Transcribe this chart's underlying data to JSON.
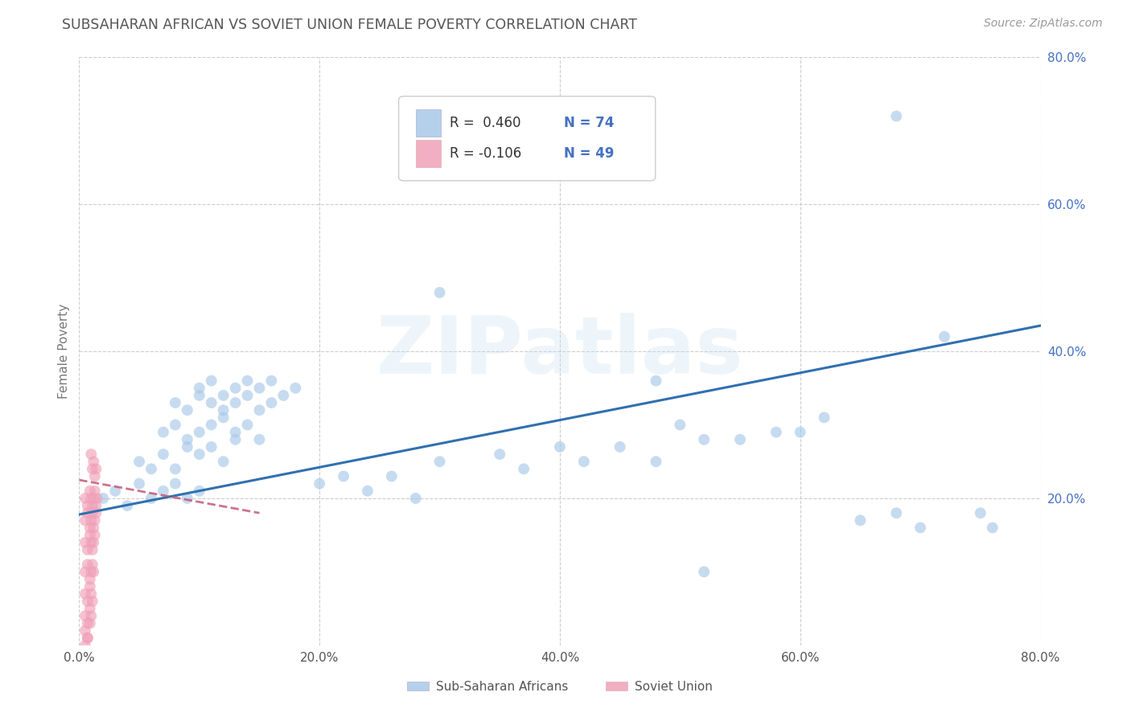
{
  "title": "SUBSAHARAN AFRICAN VS SOVIET UNION FEMALE POVERTY CORRELATION CHART",
  "source": "Source: ZipAtlas.com",
  "ylabel": "Female Poverty",
  "xlim": [
    0.0,
    0.8
  ],
  "ylim": [
    0.0,
    0.8
  ],
  "xtick_labels": [
    "0.0%",
    "20.0%",
    "40.0%",
    "60.0%",
    "80.0%"
  ],
  "xtick_values": [
    0.0,
    0.2,
    0.4,
    0.6,
    0.8
  ],
  "ytick_labels": [
    "80.0%",
    "60.0%",
    "40.0%",
    "20.0%"
  ],
  "ytick_values": [
    0.8,
    0.6,
    0.4,
    0.2
  ],
  "grid_color": "#c8c8c8",
  "background_color": "#ffffff",
  "watermark_text": "ZIPatlas",
  "color_blue": "#a8c8e8",
  "color_pink": "#f0a0b8",
  "line_color_blue": "#3070b0",
  "line_color_pink": "#c05070",
  "legend_label1": "Sub-Saharan Africans",
  "legend_label2": "Soviet Union",
  "blue_line_x0": 0.0,
  "blue_line_y0": 0.178,
  "blue_line_x1": 0.8,
  "blue_line_y1": 0.435,
  "pink_line_x0": 0.0,
  "pink_line_y0": 0.225,
  "pink_line_x1": 0.15,
  "pink_line_y1": 0.18,
  "blue_scatter_x": [
    0.02,
    0.03,
    0.04,
    0.05,
    0.06,
    0.07,
    0.08,
    0.09,
    0.1,
    0.05,
    0.06,
    0.07,
    0.08,
    0.09,
    0.1,
    0.11,
    0.12,
    0.13,
    0.07,
    0.08,
    0.09,
    0.1,
    0.11,
    0.12,
    0.13,
    0.14,
    0.15,
    0.08,
    0.09,
    0.1,
    0.11,
    0.12,
    0.13,
    0.14,
    0.15,
    0.16,
    0.1,
    0.11,
    0.12,
    0.13,
    0.14,
    0.15,
    0.16,
    0.17,
    0.18,
    0.2,
    0.22,
    0.24,
    0.26,
    0.28,
    0.3,
    0.35,
    0.37,
    0.4,
    0.42,
    0.45,
    0.48,
    0.5,
    0.52,
    0.55,
    0.58,
    0.6,
    0.62,
    0.65,
    0.68,
    0.7,
    0.72,
    0.75,
    0.76,
    0.3,
    0.48,
    0.52,
    0.68
  ],
  "blue_scatter_y": [
    0.2,
    0.21,
    0.19,
    0.22,
    0.2,
    0.21,
    0.22,
    0.2,
    0.21,
    0.25,
    0.24,
    0.26,
    0.24,
    0.27,
    0.26,
    0.27,
    0.25,
    0.28,
    0.29,
    0.3,
    0.28,
    0.29,
    0.3,
    0.31,
    0.29,
    0.3,
    0.28,
    0.33,
    0.32,
    0.34,
    0.33,
    0.32,
    0.33,
    0.34,
    0.32,
    0.33,
    0.35,
    0.36,
    0.34,
    0.35,
    0.36,
    0.35,
    0.36,
    0.34,
    0.35,
    0.22,
    0.23,
    0.21,
    0.23,
    0.2,
    0.25,
    0.26,
    0.24,
    0.27,
    0.25,
    0.27,
    0.25,
    0.3,
    0.28,
    0.28,
    0.29,
    0.29,
    0.31,
    0.17,
    0.18,
    0.16,
    0.42,
    0.18,
    0.16,
    0.48,
    0.36,
    0.1,
    0.72
  ],
  "pink_scatter_x": [
    0.005,
    0.007,
    0.009,
    0.01,
    0.011,
    0.012,
    0.013,
    0.014,
    0.015,
    0.005,
    0.007,
    0.009,
    0.01,
    0.011,
    0.012,
    0.013,
    0.014,
    0.005,
    0.007,
    0.009,
    0.01,
    0.011,
    0.012,
    0.013,
    0.005,
    0.007,
    0.009,
    0.01,
    0.011,
    0.012,
    0.005,
    0.007,
    0.009,
    0.01,
    0.011,
    0.005,
    0.007,
    0.009,
    0.01,
    0.005,
    0.007,
    0.009,
    0.005,
    0.007,
    0.01,
    0.011,
    0.012,
    0.013,
    0.014
  ],
  "pink_scatter_y": [
    0.2,
    0.19,
    0.21,
    0.2,
    0.19,
    0.2,
    0.21,
    0.19,
    0.2,
    0.17,
    0.18,
    0.16,
    0.17,
    0.18,
    0.16,
    0.17,
    0.18,
    0.14,
    0.13,
    0.15,
    0.14,
    0.13,
    0.14,
    0.15,
    0.1,
    0.11,
    0.09,
    0.1,
    0.11,
    0.1,
    0.07,
    0.06,
    0.08,
    0.07,
    0.06,
    0.04,
    0.03,
    0.05,
    0.04,
    0.02,
    0.01,
    0.03,
    0.0,
    0.01,
    0.26,
    0.24,
    0.25,
    0.23,
    0.24
  ]
}
